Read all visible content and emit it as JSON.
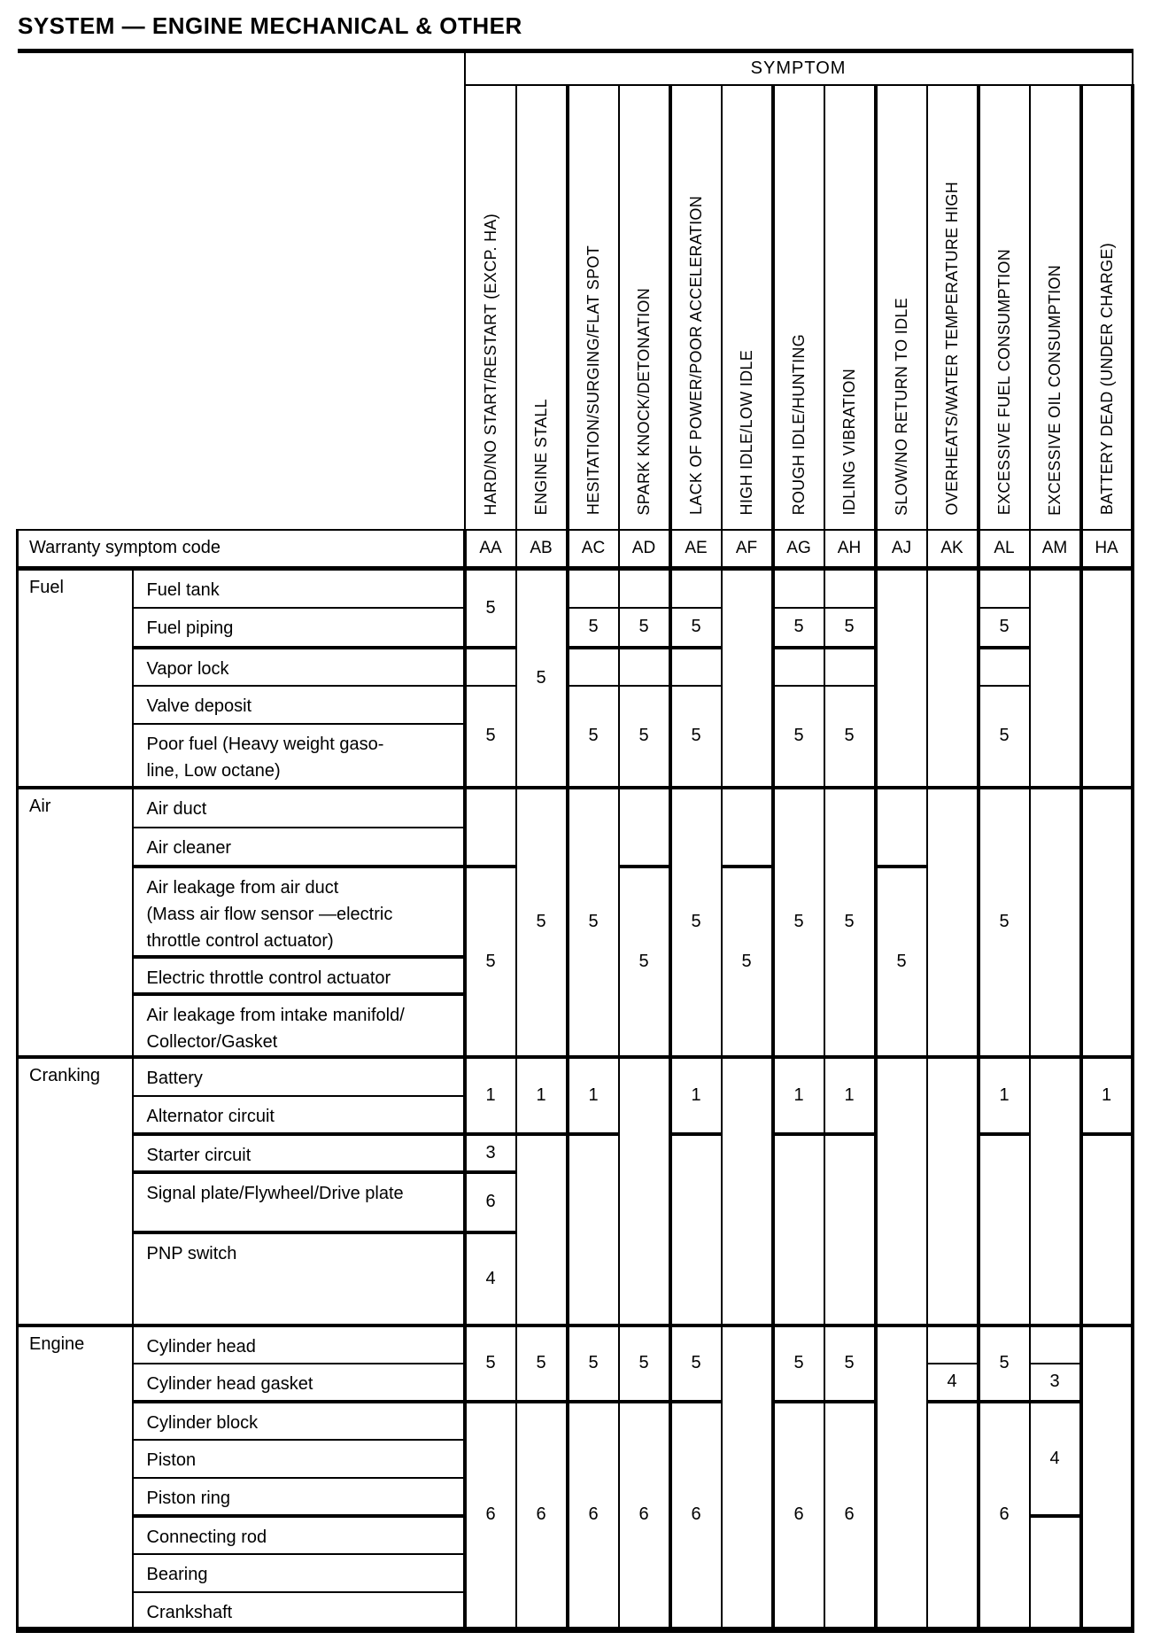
{
  "title": "SYSTEM — ENGINE MECHANICAL & OTHER",
  "table": {
    "symptom_header": "SYMPTOM",
    "code_row_label": "Warranty symptom code",
    "columns": [
      {
        "code": "AA",
        "label": "HARD/NO START/RESTART (EXCP. HA)"
      },
      {
        "code": "AB",
        "label": "ENGINE STALL"
      },
      {
        "code": "AC",
        "label": "HESITATION/SURGING/FLAT SPOT"
      },
      {
        "code": "AD",
        "label": "SPARK KNOCK/DETONATION"
      },
      {
        "code": "AE",
        "label": "LACK OF POWER/POOR ACCELERATION"
      },
      {
        "code": "AF",
        "label": "HIGH IDLE/LOW IDLE"
      },
      {
        "code": "AG",
        "label": "ROUGH IDLE/HUNTING"
      },
      {
        "code": "AH",
        "label": "IDLING VIBRATION"
      },
      {
        "code": "AJ",
        "label": "SLOW/NO RETURN TO IDLE"
      },
      {
        "code": "AK",
        "label": "OVERHEATS/WATER TEMPERATURE HIGH"
      },
      {
        "code": "AL",
        "label": "EXCESSIVE FUEL CONSUMPTION"
      },
      {
        "code": "AM",
        "label": "EXCESSIVE OIL CONSUMPTION"
      },
      {
        "code": "HA",
        "label": "BATTERY DEAD (UNDER CHARGE)"
      }
    ],
    "sections": [
      {
        "name": "Fuel",
        "rows": [
          [
            "Fuel tank"
          ],
          [
            "Fuel piping"
          ],
          [
            "Vapor lock"
          ],
          [
            "Valve deposit"
          ],
          [
            "Poor fuel (Heavy weight gaso-",
            "line, Low octane)"
          ]
        ],
        "cells": {
          "AA": [
            [
              2,
              "5"
            ],
            [
              1,
              ""
            ],
            [
              2,
              "5"
            ]
          ],
          "AB": [
            [
              5,
              "5"
            ]
          ],
          "AC": [
            [
              1,
              ""
            ],
            [
              1,
              "5"
            ],
            [
              1,
              ""
            ],
            [
              2,
              "5"
            ]
          ],
          "AD": [
            [
              1,
              ""
            ],
            [
              1,
              "5"
            ],
            [
              1,
              ""
            ],
            [
              2,
              "5"
            ]
          ],
          "AE": [
            [
              1,
              ""
            ],
            [
              1,
              "5"
            ],
            [
              1,
              ""
            ],
            [
              2,
              "5"
            ]
          ],
          "AF": [
            [
              5,
              ""
            ]
          ],
          "AG": [
            [
              1,
              ""
            ],
            [
              1,
              "5"
            ],
            [
              1,
              ""
            ],
            [
              2,
              "5"
            ]
          ],
          "AH": [
            [
              1,
              ""
            ],
            [
              1,
              "5"
            ],
            [
              1,
              ""
            ],
            [
              2,
              "5"
            ]
          ],
          "AJ": [
            [
              5,
              ""
            ]
          ],
          "AK": [
            [
              5,
              ""
            ]
          ],
          "AL": [
            [
              1,
              ""
            ],
            [
              1,
              "5"
            ],
            [
              1,
              ""
            ],
            [
              2,
              "5"
            ]
          ],
          "AM": [
            [
              5,
              ""
            ]
          ],
          "HA": [
            [
              5,
              ""
            ]
          ]
        }
      },
      {
        "name": "Air",
        "rows": [
          [
            "Air duct"
          ],
          [
            "Air cleaner"
          ],
          [
            "Air leakage from air duct",
            "(Mass air flow sensor —electric",
            "throttle control actuator)"
          ],
          [
            "Electric throttle control actuator"
          ],
          [
            "Air leakage from intake manifold/",
            "Collector/Gasket"
          ]
        ],
        "cells": {
          "AA": [
            [
              2,
              ""
            ],
            [
              3,
              "5"
            ]
          ],
          "AB": [
            [
              5,
              "5"
            ]
          ],
          "AC": [
            [
              5,
              "5"
            ]
          ],
          "AD": [
            [
              2,
              ""
            ],
            [
              3,
              "5"
            ]
          ],
          "AE": [
            [
              5,
              "5"
            ]
          ],
          "AF": [
            [
              2,
              ""
            ],
            [
              3,
              "5"
            ]
          ],
          "AG": [
            [
              5,
              "5"
            ]
          ],
          "AH": [
            [
              5,
              "5"
            ]
          ],
          "AJ": [
            [
              2,
              ""
            ],
            [
              3,
              "5"
            ]
          ],
          "AK": [
            [
              5,
              ""
            ]
          ],
          "AL": [
            [
              5,
              "5"
            ]
          ],
          "AM": [
            [
              5,
              ""
            ]
          ],
          "HA": [
            [
              5,
              ""
            ]
          ]
        }
      },
      {
        "name": "Cranking",
        "rows": [
          [
            "Battery"
          ],
          [
            "Alternator circuit"
          ],
          [
            "Starter circuit"
          ],
          [
            "Signal plate/Flywheel/Drive plate"
          ],
          [
            "PNP switch"
          ]
        ],
        "cells": {
          "AA": [
            [
              2,
              "1"
            ],
            [
              1,
              "3"
            ],
            [
              1,
              "6"
            ],
            [
              1,
              "4"
            ]
          ],
          "AB": [
            [
              2,
              "1"
            ],
            [
              3,
              ""
            ]
          ],
          "AC": [
            [
              2,
              "1"
            ],
            [
              3,
              ""
            ]
          ],
          "AD": [
            [
              5,
              ""
            ]
          ],
          "AE": [
            [
              2,
              "1"
            ],
            [
              3,
              ""
            ]
          ],
          "AF": [
            [
              5,
              ""
            ]
          ],
          "AG": [
            [
              2,
              "1"
            ],
            [
              3,
              ""
            ]
          ],
          "AH": [
            [
              2,
              "1"
            ],
            [
              3,
              ""
            ]
          ],
          "AJ": [
            [
              5,
              ""
            ]
          ],
          "AK": [
            [
              5,
              ""
            ]
          ],
          "AL": [
            [
              2,
              "1"
            ],
            [
              3,
              ""
            ]
          ],
          "AM": [
            [
              5,
              ""
            ]
          ],
          "HA": [
            [
              2,
              "1"
            ],
            [
              3,
              ""
            ]
          ]
        }
      },
      {
        "name": "Engine",
        "rows": [
          [
            "Cylinder head"
          ],
          [
            "Cylinder head gasket"
          ],
          [
            "Cylinder block"
          ],
          [
            "Piston"
          ],
          [
            "Piston ring"
          ],
          [
            "Connecting rod"
          ],
          [
            "Bearing"
          ],
          [
            "Crankshaft"
          ]
        ],
        "cells": {
          "AA": [
            [
              2,
              "5"
            ],
            [
              6,
              "6"
            ]
          ],
          "AB": [
            [
              2,
              "5"
            ],
            [
              6,
              "6"
            ]
          ],
          "AC": [
            [
              2,
              "5"
            ],
            [
              6,
              "6"
            ]
          ],
          "AD": [
            [
              2,
              "5"
            ],
            [
              6,
              "6"
            ]
          ],
          "AE": [
            [
              2,
              "5"
            ],
            [
              6,
              "6"
            ]
          ],
          "AF": [
            [
              8,
              ""
            ]
          ],
          "AG": [
            [
              2,
              "5"
            ],
            [
              6,
              "6"
            ]
          ],
          "AH": [
            [
              2,
              "5"
            ],
            [
              6,
              "6"
            ]
          ],
          "AJ": [
            [
              8,
              ""
            ]
          ],
          "AK": [
            [
              1,
              ""
            ],
            [
              1,
              "4"
            ],
            [
              6,
              ""
            ]
          ],
          "AL": [
            [
              2,
              "5"
            ],
            [
              6,
              "6"
            ]
          ],
          "AM": [
            [
              1,
              ""
            ],
            [
              1,
              "3"
            ],
            [
              3,
              "4"
            ],
            [
              3,
              ""
            ]
          ],
          "HA": [
            [
              8,
              ""
            ]
          ]
        }
      }
    ]
  }
}
